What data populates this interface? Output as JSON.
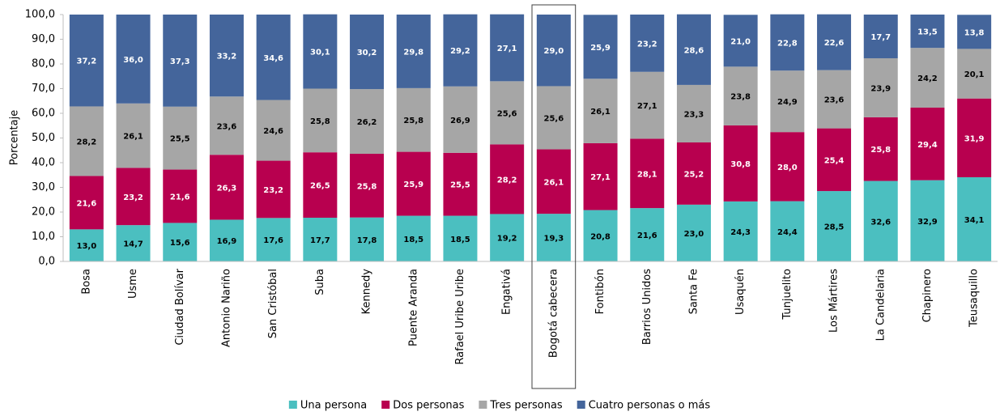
{
  "chart_data": {
    "type": "stacked_bar",
    "y_axis_label": "Porcentaje",
    "categories": [
      "Bosa",
      "Usme",
      "Ciudad Bolívar",
      "Antonio Nariño",
      "San Cristóbal",
      "Suba",
      "Kennedy",
      "Puente Aranda",
      "Rafael Uribe Uribe",
      "Engativá",
      "Bogotá cabecera",
      "Fontibón",
      "Barrios Unidos",
      "Santa Fe",
      "Usaquén",
      "Tunjuelito",
      "Los Mártires",
      "La Candelaria",
      "Chapinero",
      "Teusaquillo"
    ],
    "highlight_index": 10,
    "series": [
      {
        "name": "Una persona",
        "color": "#4bbfc0",
        "values": [
          13.0,
          14.7,
          15.6,
          16.9,
          17.6,
          17.7,
          17.8,
          18.5,
          18.5,
          19.2,
          19.3,
          20.8,
          21.6,
          23.0,
          24.3,
          24.4,
          28.5,
          32.6,
          32.9,
          34.1
        ],
        "value_labels": [
          "13,0",
          "14,7",
          "15,6",
          "16,9",
          "17,6",
          "17,7",
          "17,8",
          "18,5",
          "18,5",
          "19,2",
          "19,3",
          "20,8",
          "21,6",
          "23,0",
          "24,3",
          "24,4",
          "28,5",
          "32,6",
          "32,9",
          "34,1"
        ]
      },
      {
        "name": "Dos personas",
        "color": "#b8004f",
        "values": [
          21.6,
          23.2,
          21.6,
          26.3,
          23.2,
          26.5,
          25.8,
          25.9,
          25.5,
          28.2,
          26.1,
          27.1,
          28.1,
          25.2,
          30.8,
          28.0,
          25.4,
          25.8,
          29.4,
          31.9
        ],
        "value_labels": [
          "21,6",
          "23,2",
          "21,6",
          "26,3",
          "23,2",
          "26,5",
          "25,8",
          "25,9",
          "25,5",
          "28,2",
          "26,1",
          "27,1",
          "28,1",
          "25,2",
          "30,8",
          "28,0",
          "25,4",
          "25,8",
          "29,4",
          "31,9"
        ]
      },
      {
        "name": "Tres personas",
        "color": "#a6a6a6",
        "values": [
          28.2,
          26.1,
          25.5,
          23.6,
          24.6,
          25.8,
          26.2,
          25.8,
          26.9,
          25.6,
          25.6,
          26.1,
          27.1,
          23.3,
          23.8,
          24.9,
          23.6,
          23.9,
          24.2,
          20.1
        ],
        "value_labels": [
          "28,2",
          "26,1",
          "25,5",
          "23,6",
          "24,6",
          "25,8",
          "26,2",
          "25,8",
          "26,9",
          "25,6",
          "25,6",
          "26,1",
          "27,1",
          "23,3",
          "23,8",
          "24,9",
          "23,6",
          "23,9",
          "24,2",
          "20,1"
        ]
      },
      {
        "name": "Cuatro personas o más",
        "color": "#44659b",
        "values": [
          37.2,
          36.0,
          37.3,
          33.2,
          34.6,
          30.1,
          30.2,
          29.8,
          29.2,
          27.1,
          29.0,
          25.9,
          23.2,
          28.6,
          21.0,
          22.8,
          22.6,
          17.7,
          13.5,
          13.8
        ],
        "value_labels": [
          "37,2",
          "36,0",
          "37,3",
          "33,2",
          "34,6",
          "30,1",
          "30,2",
          "29,8",
          "29,2",
          "27,1",
          "29,0",
          "25,9",
          "23,2",
          "28,6",
          "21,0",
          "22,8",
          "22,6",
          "17,7",
          "13,5",
          "13,8"
        ]
      }
    ],
    "ylim": [
      0,
      100
    ],
    "yticks": [
      {
        "value": 0,
        "label": "0,0"
      },
      {
        "value": 10,
        "label": "10,0"
      },
      {
        "value": 20,
        "label": "20,0"
      },
      {
        "value": 30,
        "label": "30,0"
      },
      {
        "value": 40,
        "label": "40,0"
      },
      {
        "value": 50,
        "label": "50,0"
      },
      {
        "value": 60,
        "label": "60,0"
      },
      {
        "value": 70,
        "label": "70,0"
      },
      {
        "value": 80,
        "label": "80,0"
      },
      {
        "value": 90,
        "label": "90,0"
      },
      {
        "value": 100,
        "label": "100,0"
      }
    ],
    "legend": "bottom"
  }
}
